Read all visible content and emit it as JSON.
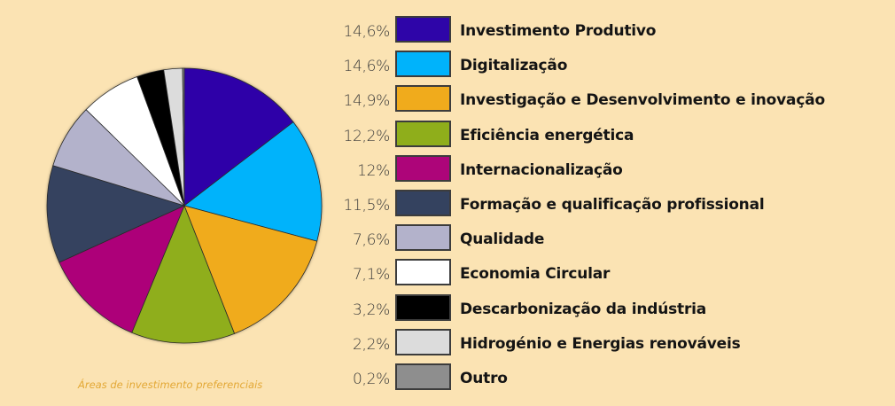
{
  "chart_data": {
    "type": "pie",
    "caption": "Áreas de investimento preferenciais",
    "slices": [
      {
        "label": "Investimento Produtivo",
        "pct_label": "14,6%",
        "value": 14.6,
        "color": "#2e05a8"
      },
      {
        "label": "Digitalização",
        "pct_label": "14,6%",
        "value": 14.6,
        "color": "#00b3fb"
      },
      {
        "label": "Investigação e Desenvolvimento e inovação",
        "pct_label": "14,9%",
        "value": 14.9,
        "color": "#f0ab1c"
      },
      {
        "label": "Eficiência energética",
        "pct_label": "12,2%",
        "value": 12.2,
        "color": "#8fae1b"
      },
      {
        "label": "Internacionalização",
        "pct_label": "12%",
        "value": 12.0,
        "color": "#ad0579"
      },
      {
        "label": "Formação e qualificação profissional",
        "pct_label": "11,5%",
        "value": 11.5,
        "color": "#34425f"
      },
      {
        "label": "Qualidade",
        "pct_label": "7,6%",
        "value": 7.6,
        "color": "#b3b2cb"
      },
      {
        "label": "Economia Circular",
        "pct_label": "7,1%",
        "value": 7.1,
        "color": "#ffffff"
      },
      {
        "label": "Descarbonização da indústria",
        "pct_label": "3,2%",
        "value": 3.2,
        "color": "#000000"
      },
      {
        "label": "Hidrogénio e Energias renováveis",
        "pct_label": "2,2%",
        "value": 2.2,
        "color": "#dcdcdc"
      },
      {
        "label": "Outro",
        "pct_label": "0,2%",
        "value": 0.2,
        "color": "#8e8e8e"
      }
    ],
    "legend_position": "right"
  }
}
